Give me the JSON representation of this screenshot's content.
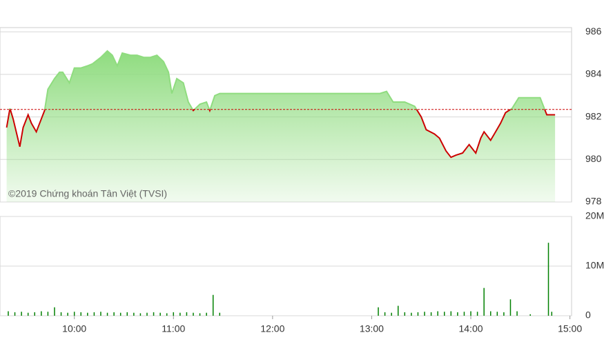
{
  "chart_data": [
    {
      "type": "area",
      "watermark": "©2019 Chứng khoán Tân Việt (TVSI)",
      "x": [
        559,
        561,
        563,
        567,
        569,
        572,
        574,
        577,
        579,
        582,
        584,
        588,
        591,
        593,
        597,
        600,
        604,
        608,
        611,
        616,
        620,
        623,
        626,
        629,
        634,
        638,
        642,
        646,
        650,
        654,
        657,
        659,
        662,
        666,
        669,
        672,
        676,
        680,
        682,
        685,
        688,
        781,
        785,
        789,
        793,
        800,
        806,
        810,
        813,
        818,
        821,
        825,
        828,
        831,
        835,
        839,
        843,
        846,
        848,
        852,
        855,
        858,
        861,
        865,
        869,
        882,
        886,
        891
      ],
      "values": [
        981.5,
        982.4,
        981.9,
        980.6,
        981.5,
        982.1,
        981.7,
        981.3,
        981.7,
        982.3,
        983.3,
        983.8,
        984.1,
        984.1,
        983.6,
        984.3,
        984.3,
        984.4,
        984.5,
        984.8,
        985.1,
        984.9,
        984.4,
        985.0,
        984.9,
        984.9,
        984.8,
        984.8,
        984.9,
        984.6,
        984.1,
        983.1,
        983.8,
        983.6,
        982.7,
        982.3,
        982.6,
        982.7,
        982.3,
        983.0,
        983.1,
        983.1,
        983.1,
        983.2,
        982.7,
        982.7,
        982.5,
        982.0,
        981.4,
        981.2,
        981.0,
        980.4,
        980.1,
        980.2,
        980.3,
        980.7,
        980.3,
        981.0,
        981.3,
        980.9,
        981.3,
        981.7,
        982.2,
        982.4,
        982.9,
        982.9,
        982.1,
        982.1
      ],
      "color": "#cc0000",
      "area_color": "#8fdc7f",
      "reference_line": 982.35,
      "reference_color": "#cc0000",
      "xlim": [
        555,
        901
      ],
      "ylim": [
        978,
        986.2
      ],
      "yticks": [
        978,
        980,
        982,
        984,
        986
      ],
      "grid": true
    },
    {
      "type": "bar",
      "x": [
        560,
        564,
        568,
        572,
        576,
        580,
        584,
        588,
        592,
        596,
        600,
        604,
        608,
        612,
        616,
        620,
        624,
        628,
        632,
        636,
        640,
        644,
        648,
        652,
        656,
        660,
        664,
        668,
        672,
        676,
        680,
        684,
        688,
        784,
        788,
        792,
        796,
        800,
        804,
        808,
        812,
        816,
        820,
        824,
        828,
        832,
        836,
        840,
        844,
        848,
        852,
        856,
        860,
        864,
        868,
        876,
        887,
        889
      ],
      "values": [
        900000,
        700000,
        800000,
        600000,
        700000,
        900000,
        800000,
        1700000,
        700000,
        600000,
        800000,
        700000,
        600000,
        700000,
        800000,
        600000,
        700000,
        600000,
        700000,
        600000,
        500000,
        600000,
        700000,
        600000,
        500000,
        700000,
        600000,
        700000,
        600000,
        500000,
        600000,
        4200000,
        600000,
        1700000,
        700000,
        600000,
        2000000,
        700000,
        600000,
        700000,
        800000,
        700000,
        900000,
        800000,
        900000,
        700000,
        800000,
        900000,
        800000,
        5600000,
        900000,
        800000,
        700000,
        3300000,
        900000,
        300000,
        14700000,
        800000
      ],
      "color": "#008000",
      "xlim": [
        555,
        901
      ],
      "ylim": [
        0,
        20000000
      ],
      "yticks": [
        0,
        {
          "value": 10000000,
          "label": "10M"
        },
        {
          "value": 20000000,
          "label": "20M"
        }
      ],
      "xticks": [
        {
          "value": 600,
          "label": "10:00"
        },
        {
          "value": 660,
          "label": "11:00"
        },
        {
          "value": 720,
          "label": "12:00"
        },
        {
          "value": 780,
          "label": "13:00"
        },
        {
          "value": 840,
          "label": "14:00"
        },
        {
          "value": 900,
          "label": "15:00"
        }
      ],
      "grid": true
    }
  ]
}
